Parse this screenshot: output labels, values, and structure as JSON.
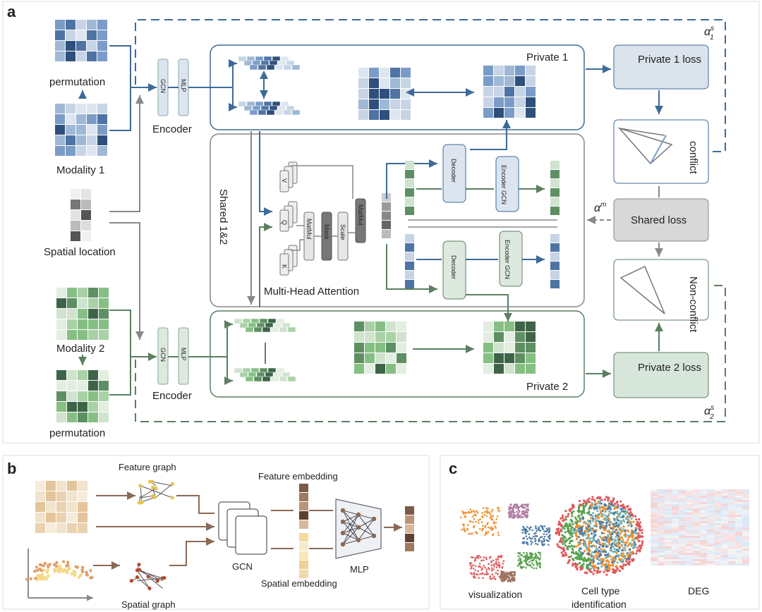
{
  "panel_labels": {
    "a": "a",
    "b": "b",
    "c": "c"
  },
  "panel_a": {
    "permutation_top": "permutation",
    "modality_1": "Modality 1",
    "spatial_location": "Spatial location",
    "modality_2": "Modality 2",
    "permutation_bottom": "permutation",
    "gcn": "GCN",
    "mlp": "MLP",
    "encoder": "Encoder",
    "private_1": "Private 1",
    "private_2": "Private 2",
    "shared": "Shared 1&2",
    "multi_head_attention": "Multi-Head Attention",
    "v": "V",
    "q": "Q",
    "k": "K",
    "matmul": "MatMul",
    "mask": "Mask",
    "scale": "Scale",
    "decoder": "Decoder",
    "encoder_gcn": "Encoder GCN",
    "private_1_loss": "Private 1 loss",
    "private_2_loss": "Private 2 loss",
    "shared_loss": "Shared loss",
    "conflict": "conflict",
    "non_conflict": "Non-conflict",
    "alpha_1": "α",
    "alpha_1_sup": "s",
    "alpha_1_sub": "1",
    "alpha_2": "α",
    "alpha_2_sup": "s",
    "alpha_2_sub": "2",
    "alpha_m": "α",
    "alpha_m_sup": "m"
  },
  "panel_b": {
    "feature_graph": "Feature graph",
    "feature_embedding": "Feature embedding",
    "gcn": "GCN",
    "mlp": "MLP",
    "spatial_graph": "Spatial graph",
    "spatial_embedding": "Spatial embedding"
  },
  "panel_c": {
    "visualization": "visualization",
    "cell_type_1": "Cell type",
    "cell_type_2": "identification",
    "deg": "DEG"
  },
  "colors": {
    "blue": "#3e6a9a",
    "green": "#5a7f61",
    "brown": "#8a6a55",
    "gray": "#888888"
  }
}
